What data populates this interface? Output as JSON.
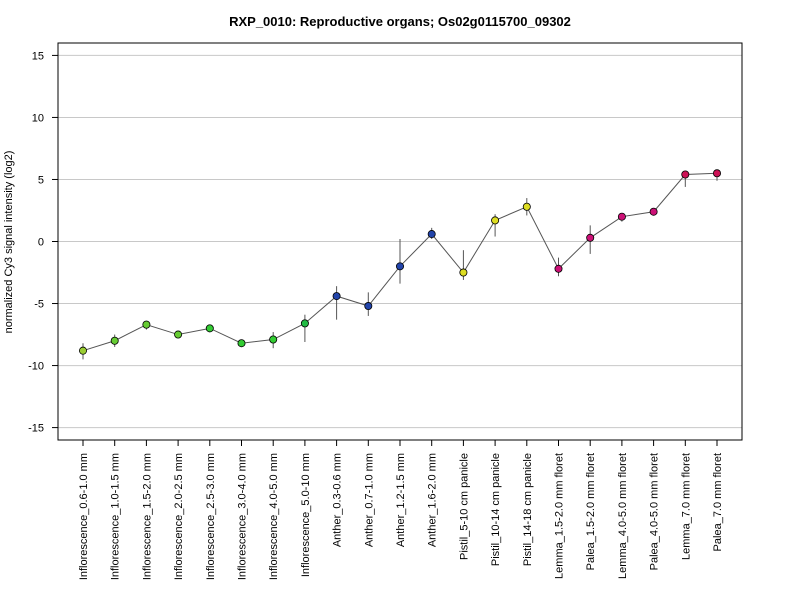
{
  "chart_data": {
    "type": "line",
    "title": "RXP_0010: Reproductive organs; Os02g0115700_09302",
    "xlabel": "",
    "ylabel": "normalized Cy3 signal intensity (log2)",
    "ylim": [
      -16,
      16
    ],
    "yticks": [
      -15,
      -10,
      -5,
      0,
      5,
      10,
      15
    ],
    "grid": true,
    "categories": [
      "Inflorescence_0.6-1.0 mm",
      "Inflorescence_1.0-1.5 mm",
      "Inflorescence_1.5-2.0 mm",
      "Inflorescence_2.0-2.5 mm",
      "Inflorescence_2.5-3.0 mm",
      "Inflorescence_3.0-4.0 mm",
      "Inflorescence_4.0-5.0 mm",
      "Inflorescence_5.0-10 mm",
      "Anther_0.3-0.6 mm",
      "Anther_0.7-1.0 mm",
      "Anther_1.2-1.5 mm",
      "Anther_1.6-2.0 mm",
      "Pistil_5-10 cm panicle",
      "Pistil_10-14 cm panicle",
      "Pistil_14-18 cm panicle",
      "Lemma_1.5-2.0 mm floret",
      "Palea_1.5-2.0 mm floret",
      "Lemma_4.0-5.0 mm floret",
      "Palea_4.0-5.0 mm floret",
      "Lemma_7.0 mm floret",
      "Palea_7.0 mm floret"
    ],
    "values": [
      -8.8,
      -8.0,
      -6.7,
      -7.5,
      -7.0,
      -8.2,
      -7.9,
      -6.6,
      -4.4,
      -5.2,
      -2.0,
      0.6,
      -2.5,
      1.7,
      2.8,
      -2.2,
      0.3,
      2.0,
      2.4,
      5.4,
      5.5
    ],
    "err_low": [
      -9.5,
      -8.5,
      -7.1,
      -7.7,
      -7.3,
      -8.5,
      -8.6,
      -8.1,
      -6.3,
      -6.0,
      -3.4,
      0.2,
      -3.1,
      0.4,
      2.1,
      -2.8,
      -1.0,
      1.6,
      2.1,
      4.4,
      4.9
    ],
    "err_high": [
      -8.2,
      -7.5,
      -6.4,
      -7.3,
      -6.7,
      -7.9,
      -7.3,
      -5.9,
      -3.6,
      -4.1,
      0.2,
      1.1,
      -0.7,
      2.2,
      3.5,
      -1.3,
      1.3,
      2.3,
      2.7,
      5.6,
      5.7
    ],
    "point_colors": [
      "#9acd32",
      "#66cc33",
      "#66cc33",
      "#66cc33",
      "#33cc33",
      "#33cc33",
      "#33cc33",
      "#22bb44",
      "#2244aa",
      "#2244aa",
      "#2244aa",
      "#2244aa",
      "#dddd22",
      "#dddd22",
      "#dddd22",
      "#cc1177",
      "#cc1177",
      "#cc1177",
      "#cc1177",
      "#cc1155",
      "#cc1155"
    ]
  }
}
